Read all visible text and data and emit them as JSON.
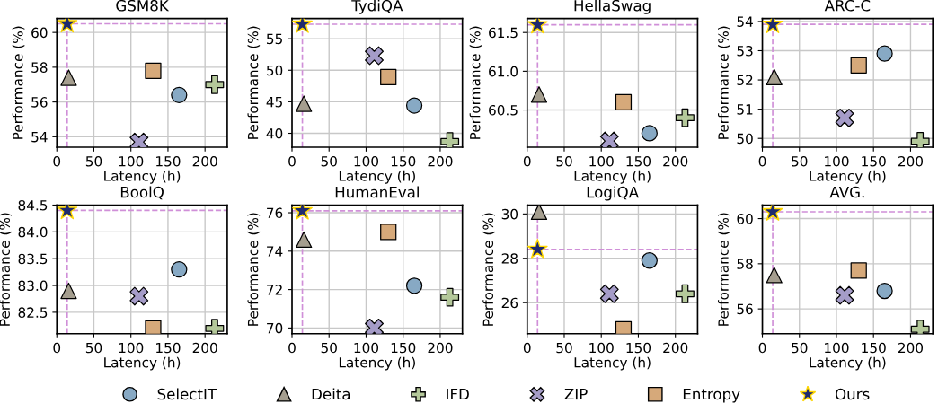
{
  "chart_data": [
    {
      "type": "scatter",
      "title": "GSM8K",
      "xlabel": "Latency (h)",
      "ylabel": "Performance (%)",
      "xlim": [
        0,
        230
      ],
      "xticks": [
        0,
        50,
        100,
        150,
        200
      ],
      "ylim": [
        53.4,
        60.8
      ],
      "yticks": [
        54,
        56,
        58,
        60
      ],
      "grid": true,
      "legend": "bottom",
      "series": [
        {
          "name": "SelectIT",
          "color": "#87a9c4",
          "marker": "circle",
          "x": [
            165
          ],
          "values": [
            56.4
          ]
        },
        {
          "name": "Deita",
          "color": "#a59e8f",
          "marker": "triangle",
          "x": [
            16
          ],
          "values": [
            57.4
          ]
        },
        {
          "name": "IFD",
          "color": "#b4c89a",
          "marker": "plus",
          "x": [
            213
          ],
          "values": [
            57.0
          ]
        },
        {
          "name": "ZIP",
          "color": "#a59cc8",
          "marker": "cross",
          "x": [
            111
          ],
          "values": [
            53.7
          ]
        },
        {
          "name": "Entropy",
          "color": "#d6a97a",
          "marker": "square",
          "x": [
            130
          ],
          "values": [
            57.8
          ]
        },
        {
          "name": "Ours",
          "color": "#1f2a6e",
          "marker": "star",
          "x": [
            14
          ],
          "values": [
            60.5
          ]
        }
      ],
      "ref_lines": [
        {
          "axis": "x",
          "value": 14,
          "color": "#d08fd8",
          "line_style": "dashed"
        },
        {
          "axis": "y",
          "value": 60.5,
          "color": "#d08fd8",
          "line_style": "dashed"
        }
      ]
    },
    {
      "type": "scatter",
      "title": "TydiQA",
      "xlabel": "Latency (h)",
      "ylabel": "Performance (%)",
      "xlim": [
        0,
        230
      ],
      "xticks": [
        0,
        50,
        100,
        150,
        200
      ],
      "ylim": [
        37.8,
        58.2
      ],
      "yticks": [
        40,
        45,
        50,
        55
      ],
      "grid": true,
      "series": [
        {
          "color": "#87a9c4",
          "marker": "circle",
          "x": [
            165
          ],
          "values": [
            44.4
          ]
        },
        {
          "color": "#a59e8f",
          "marker": "triangle",
          "x": [
            16
          ],
          "values": [
            44.7
          ]
        },
        {
          "color": "#b4c89a",
          "marker": "plus",
          "x": [
            213
          ],
          "values": [
            38.7
          ]
        },
        {
          "color": "#a59cc8",
          "marker": "cross",
          "x": [
            111
          ],
          "values": [
            52.3
          ]
        },
        {
          "color": "#d6a97a",
          "marker": "square",
          "x": [
            130
          ],
          "values": [
            48.9
          ]
        },
        {
          "color": "#1f2a6e",
          "marker": "star",
          "x": [
            14
          ],
          "values": [
            57.3
          ]
        }
      ],
      "ref_lines": [
        {
          "axis": "x",
          "value": 14,
          "color": "#d08fd8",
          "line_style": "dashed"
        },
        {
          "axis": "y",
          "value": 57.3,
          "color": "#d08fd8",
          "line_style": "dashed"
        }
      ]
    },
    {
      "type": "scatter",
      "title": "HellaSwag",
      "xlabel": "Latency (h)",
      "ylabel": "Performance (%)",
      "xlim": [
        0,
        230
      ],
      "xticks": [
        0,
        50,
        100,
        150,
        200
      ],
      "ylim": [
        60.02,
        61.68
      ],
      "yticks": [
        {
          "value": 60.5,
          "label": "60.5"
        },
        {
          "value": 61.0,
          "label": "61.0"
        },
        {
          "value": 61.5,
          "label": "61.5"
        }
      ],
      "grid": true,
      "series": [
        {
          "color": "#87a9c4",
          "marker": "circle",
          "x": [
            165
          ],
          "values": [
            60.2
          ]
        },
        {
          "color": "#a59e8f",
          "marker": "triangle",
          "x": [
            16
          ],
          "values": [
            60.7
          ]
        },
        {
          "color": "#b4c89a",
          "marker": "plus",
          "x": [
            213
          ],
          "values": [
            60.4
          ]
        },
        {
          "color": "#a59cc8",
          "marker": "cross",
          "x": [
            111
          ],
          "values": [
            60.1
          ]
        },
        {
          "color": "#d6a97a",
          "marker": "square",
          "x": [
            130
          ],
          "values": [
            60.6
          ]
        },
        {
          "color": "#1f2a6e",
          "marker": "star",
          "x": [
            14
          ],
          "values": [
            61.6
          ]
        }
      ],
      "ref_lines": [
        {
          "axis": "x",
          "value": 14,
          "color": "#d08fd8",
          "line_style": "dashed"
        },
        {
          "axis": "y",
          "value": 61.6,
          "color": "#d08fd8",
          "line_style": "dashed"
        }
      ]
    },
    {
      "type": "scatter",
      "title": "ARC-C",
      "xlabel": "Latency (h)",
      "ylabel": "Performance (%)",
      "xlim": [
        0,
        230
      ],
      "xticks": [
        0,
        50,
        100,
        150,
        200
      ],
      "ylim": [
        49.7,
        54.1
      ],
      "yticks": [
        50,
        51,
        52,
        53,
        54
      ],
      "grid": true,
      "series": [
        {
          "color": "#87a9c4",
          "marker": "circle",
          "x": [
            165
          ],
          "values": [
            52.9
          ]
        },
        {
          "color": "#a59e8f",
          "marker": "triangle",
          "x": [
            16
          ],
          "values": [
            52.1
          ]
        },
        {
          "color": "#b4c89a",
          "marker": "plus",
          "x": [
            213
          ],
          "values": [
            49.9
          ]
        },
        {
          "color": "#a59cc8",
          "marker": "cross",
          "x": [
            111
          ],
          "values": [
            50.7
          ]
        },
        {
          "color": "#d6a97a",
          "marker": "square",
          "x": [
            130
          ],
          "values": [
            52.5
          ]
        },
        {
          "color": "#1f2a6e",
          "marker": "star",
          "x": [
            14
          ],
          "values": [
            53.9
          ]
        }
      ],
      "ref_lines": [
        {
          "axis": "x",
          "value": 14,
          "color": "#d08fd8",
          "line_style": "dashed"
        },
        {
          "axis": "y",
          "value": 53.9,
          "color": "#d08fd8",
          "line_style": "dashed"
        }
      ]
    },
    {
      "type": "scatter",
      "title": "BoolQ",
      "xlabel": "Latency (h)",
      "ylabel": "Performance (%)",
      "xlim": [
        0,
        230
      ],
      "xticks": [
        0,
        50,
        100,
        150,
        200
      ],
      "ylim": [
        82.1,
        84.5
      ],
      "yticks": [
        {
          "value": 82.5,
          "label": "82.5"
        },
        {
          "value": 83.0,
          "label": "83.0"
        },
        {
          "value": 83.5,
          "label": "83.5"
        },
        {
          "value": 84.0,
          "label": "84.0"
        },
        {
          "value": 84.5,
          "label": "84.5"
        }
      ],
      "grid": true,
      "series": [
        {
          "color": "#87a9c4",
          "marker": "circle",
          "x": [
            165
          ],
          "values": [
            83.3
          ]
        },
        {
          "color": "#a59e8f",
          "marker": "triangle",
          "x": [
            16
          ],
          "values": [
            82.9
          ]
        },
        {
          "color": "#b4c89a",
          "marker": "plus",
          "x": [
            213
          ],
          "values": [
            82.2
          ]
        },
        {
          "color": "#a59cc8",
          "marker": "cross",
          "x": [
            111
          ],
          "values": [
            82.8
          ]
        },
        {
          "color": "#d6a97a",
          "marker": "square",
          "x": [
            130
          ],
          "values": [
            82.2
          ]
        },
        {
          "color": "#1f2a6e",
          "marker": "star",
          "x": [
            14
          ],
          "values": [
            84.4
          ]
        }
      ],
      "ref_lines": [
        {
          "axis": "x",
          "value": 14,
          "color": "#d08fd8",
          "line_style": "dashed"
        },
        {
          "axis": "y",
          "value": 84.4,
          "color": "#d08fd8",
          "line_style": "dashed"
        }
      ]
    },
    {
      "type": "scatter",
      "title": "HumanEval",
      "xlabel": "Latency (h)",
      "ylabel": "Performance (%)",
      "xlim": [
        0,
        230
      ],
      "xticks": [
        0,
        50,
        100,
        150,
        200
      ],
      "ylim": [
        69.7,
        76.4
      ],
      "yticks": [
        70,
        72,
        74,
        76
      ],
      "grid": true,
      "series": [
        {
          "color": "#87a9c4",
          "marker": "circle",
          "x": [
            165
          ],
          "values": [
            72.2
          ]
        },
        {
          "color": "#a59e8f",
          "marker": "triangle",
          "x": [
            16
          ],
          "values": [
            74.6
          ]
        },
        {
          "color": "#b4c89a",
          "marker": "plus",
          "x": [
            213
          ],
          "values": [
            71.6
          ]
        },
        {
          "color": "#a59cc8",
          "marker": "cross",
          "x": [
            111
          ],
          "values": [
            70.0
          ]
        },
        {
          "color": "#d6a97a",
          "marker": "square",
          "x": [
            130
          ],
          "values": [
            75.0
          ]
        },
        {
          "color": "#1f2a6e",
          "marker": "star",
          "x": [
            14
          ],
          "values": [
            76.1
          ]
        }
      ],
      "ref_lines": [
        {
          "axis": "x",
          "value": 14,
          "color": "#d08fd8",
          "line_style": "dashed"
        },
        {
          "axis": "y",
          "value": 76.1,
          "color": "#d08fd8",
          "line_style": "dashed"
        }
      ]
    },
    {
      "type": "scatter",
      "title": "LogiQA",
      "xlabel": "Latency (h)",
      "ylabel": "Performance (%)",
      "xlim": [
        0,
        230
      ],
      "xticks": [
        0,
        50,
        100,
        150,
        200
      ],
      "ylim": [
        24.6,
        30.4
      ],
      "yticks": [
        26,
        28,
        30
      ],
      "grid": true,
      "series": [
        {
          "color": "#87a9c4",
          "marker": "circle",
          "x": [
            165
          ],
          "values": [
            27.9
          ]
        },
        {
          "color": "#a59e8f",
          "marker": "triangle",
          "x": [
            16
          ],
          "values": [
            30.1
          ]
        },
        {
          "color": "#b4c89a",
          "marker": "plus",
          "x": [
            213
          ],
          "values": [
            26.4
          ]
        },
        {
          "color": "#a59cc8",
          "marker": "cross",
          "x": [
            111
          ],
          "values": [
            26.4
          ]
        },
        {
          "color": "#d6a97a",
          "marker": "square",
          "x": [
            130
          ],
          "values": [
            24.8
          ]
        },
        {
          "color": "#1f2a6e",
          "marker": "star",
          "x": [
            14
          ],
          "values": [
            28.4
          ]
        }
      ],
      "ref_lines": [
        {
          "axis": "x",
          "value": 14,
          "color": "#d08fd8",
          "line_style": "dashed"
        },
        {
          "axis": "y",
          "value": 28.4,
          "color": "#d08fd8",
          "line_style": "dashed"
        }
      ]
    },
    {
      "type": "scatter",
      "title": "AVG.",
      "xlabel": "Latency (h)",
      "ylabel": "Performance (%)",
      "xlim": [
        0,
        230
      ],
      "xticks": [
        0,
        50,
        100,
        150,
        200
      ],
      "ylim": [
        54.9,
        60.6
      ],
      "yticks": [
        56,
        58,
        60
      ],
      "grid": true,
      "series": [
        {
          "color": "#87a9c4",
          "marker": "circle",
          "x": [
            165
          ],
          "values": [
            56.8
          ]
        },
        {
          "color": "#a59e8f",
          "marker": "triangle",
          "x": [
            16
          ],
          "values": [
            57.5
          ]
        },
        {
          "color": "#b4c89a",
          "marker": "plus",
          "x": [
            213
          ],
          "values": [
            55.1
          ]
        },
        {
          "color": "#a59cc8",
          "marker": "cross",
          "x": [
            111
          ],
          "values": [
            56.6
          ]
        },
        {
          "color": "#d6a97a",
          "marker": "square",
          "x": [
            130
          ],
          "values": [
            57.7
          ]
        },
        {
          "color": "#1f2a6e",
          "marker": "star",
          "x": [
            14
          ],
          "values": [
            60.3
          ]
        }
      ],
      "ref_lines": [
        {
          "axis": "x",
          "value": 14,
          "color": "#d08fd8",
          "line_style": "dashed"
        },
        {
          "axis": "y",
          "value": 60.3,
          "color": "#d08fd8",
          "line_style": "dashed"
        }
      ]
    }
  ]
}
